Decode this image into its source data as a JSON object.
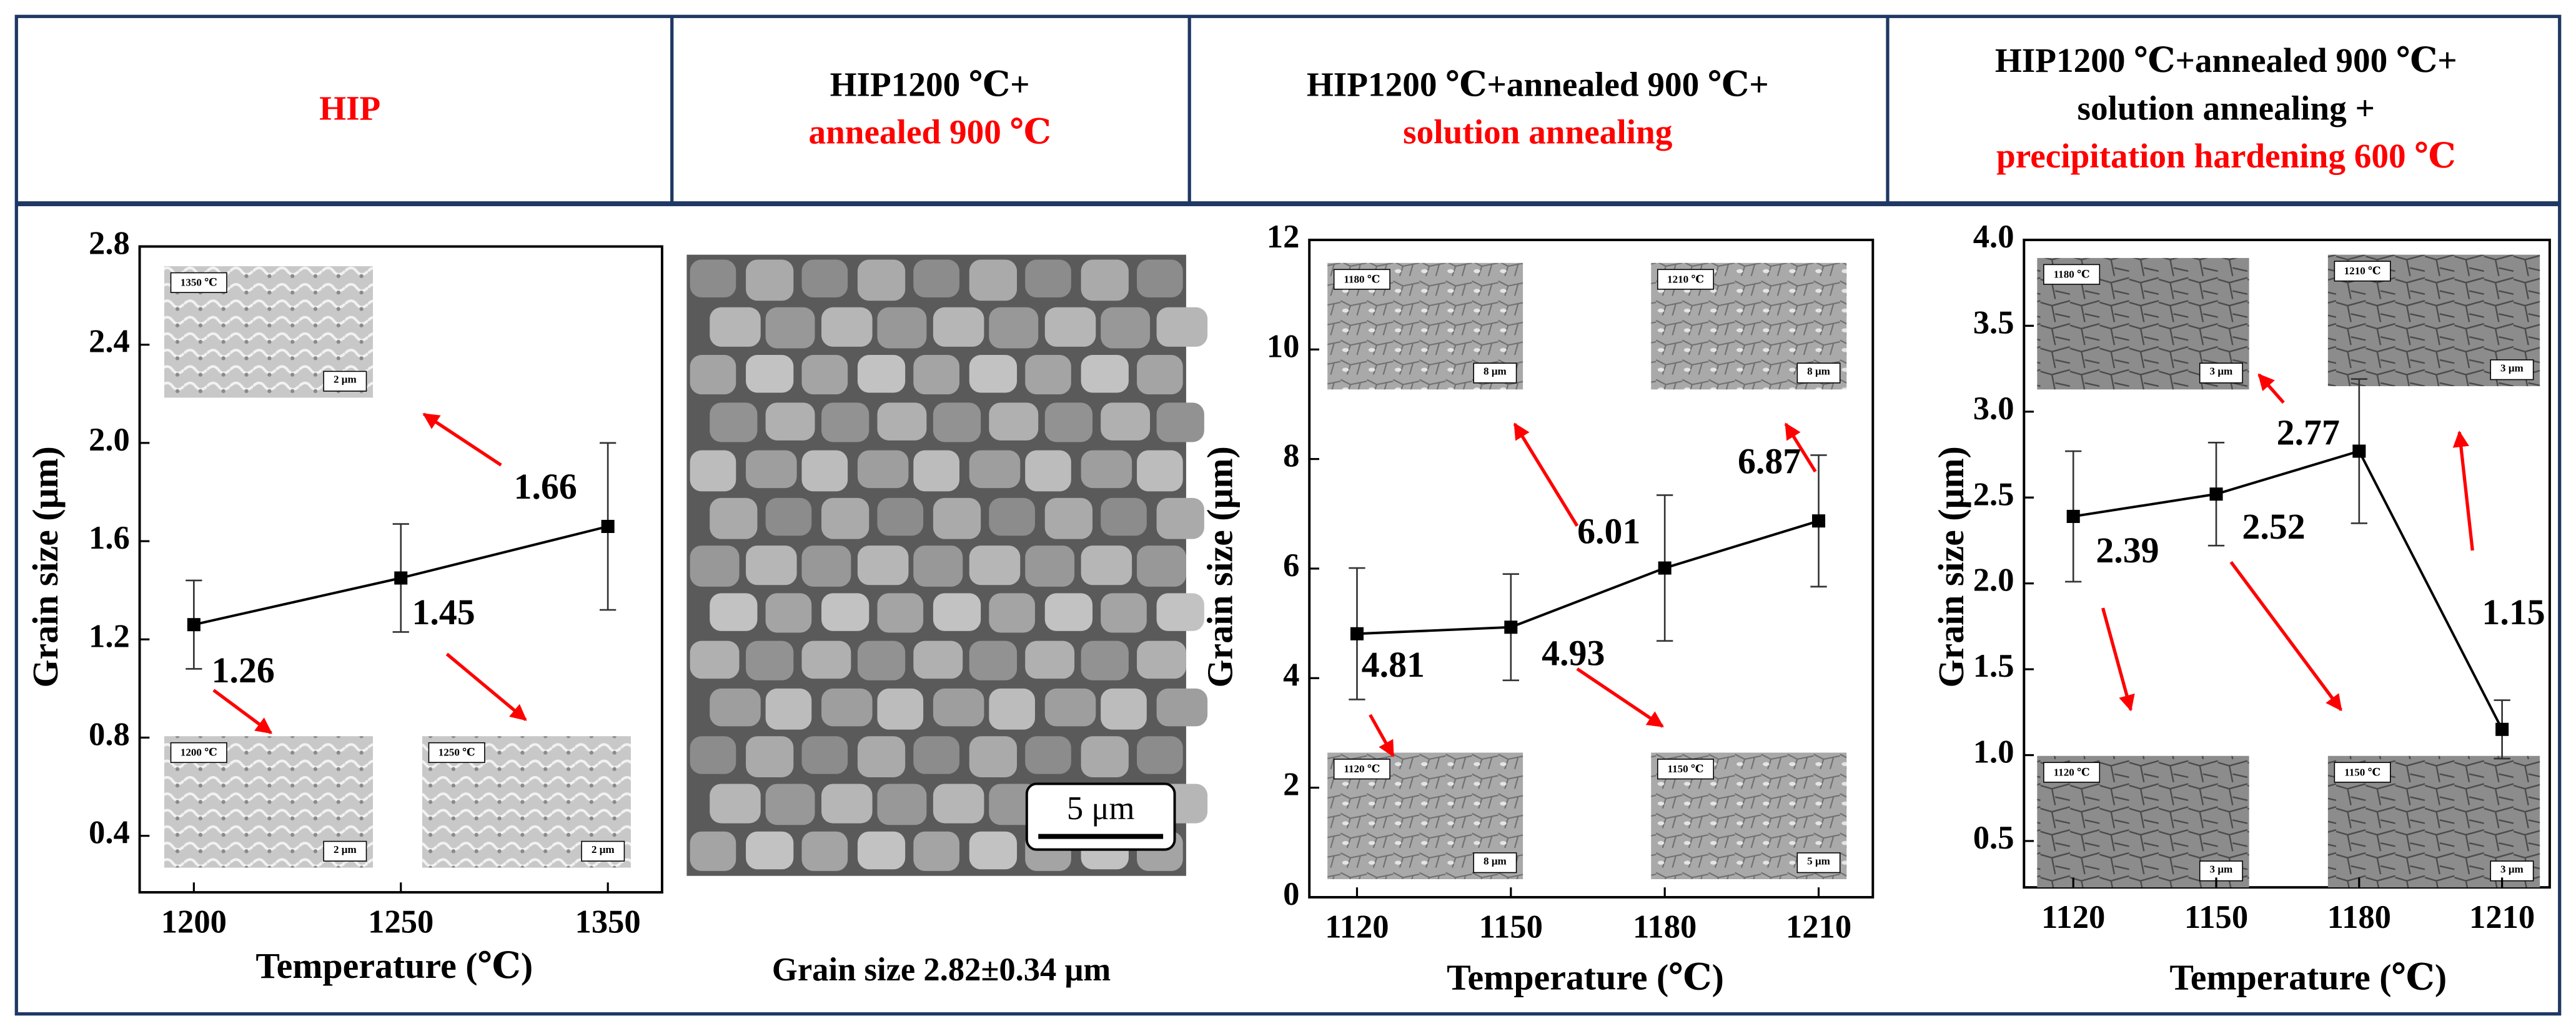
{
  "header": {
    "cells": [
      {
        "lines": [
          {
            "text": "HIP",
            "color": "#ff0000"
          }
        ]
      },
      {
        "lines": [
          {
            "text": "HIP1200 ℃+",
            "color": "#000000"
          },
          {
            "text": "annealed 900 ℃",
            "color": "#ff0000"
          }
        ]
      },
      {
        "lines": [
          {
            "text": "HIP1200 ℃+annealed 900 ℃+",
            "color": "#000000"
          },
          {
            "text": "solution annealing",
            "color": "#ff0000"
          }
        ]
      },
      {
        "lines": [
          {
            "text": "HIP1200 ℃+annealed 900 ℃+",
            "color": "#000000"
          },
          {
            "text": "solution annealing +",
            "color": "#000000"
          },
          {
            "text": "precipitation hardening 600 ℃",
            "color": "#ff0000"
          }
        ]
      }
    ]
  },
  "micrograph": {
    "scale_bar": "5 μm",
    "caption": "Grain size 2.82±0.34 μm"
  },
  "chart_data": [
    {
      "type": "line",
      "x_label": "Temperature (℃)",
      "y_label": "Grain size (μm)",
      "categories": [
        "1200",
        "1250",
        "1350"
      ],
      "series": [
        {
          "color": "#000000",
          "values": [
            1.26,
            1.45,
            1.66
          ],
          "errors": [
            0.18,
            0.22,
            0.34
          ]
        }
      ],
      "ylim": [
        0.17,
        2.8
      ],
      "yticks": [
        0.4,
        0.8,
        1.2,
        1.6,
        {
          "value": 2,
          "label": "2.0"
        },
        2.4,
        2.8
      ],
      "insets": [
        {
          "label": "1350 ℃",
          "scale": "2 μm"
        },
        {
          "label": "1200 ℃",
          "scale": "2 μm"
        },
        {
          "label": "1250 ℃",
          "scale": "2 μm"
        }
      ]
    },
    {
      "type": "line",
      "x_label": "Temperature (℃)",
      "y_label": "Grain size (μm)",
      "categories": [
        "1120",
        "1150",
        "1180",
        "1210"
      ],
      "series": [
        {
          "color": "#000000",
          "values": [
            4.81,
            4.93,
            6.01,
            6.87
          ],
          "errors": [
            1.2,
            0.97,
            1.33,
            1.2
          ]
        }
      ],
      "ylim": [
        0,
        12
      ],
      "yticks": [
        0,
        2,
        4,
        6,
        8,
        10,
        12
      ],
      "insets": [
        {
          "label": "1180 ℃",
          "scale": "8 μm"
        },
        {
          "label": "1210 ℃",
          "scale": "8 μm"
        },
        {
          "label": "1120 ℃",
          "scale": "8 μm"
        },
        {
          "label": "1150 ℃",
          "scale": "5 μm"
        }
      ]
    },
    {
      "type": "line",
      "x_label": "Temperature (℃)",
      "y_label": "Grain size (μm)",
      "categories": [
        "1120",
        "1150",
        "1180",
        "1210"
      ],
      "series": [
        {
          "color": "#000000",
          "values": [
            2.39,
            2.52,
            2.77,
            1.15
          ],
          "errors": [
            0.38,
            0.3,
            0.42,
            0.17
          ]
        }
      ],
      "ylim": [
        0.23,
        4
      ],
      "yticks": [
        0.5,
        {
          "value": 1,
          "label": "1.0"
        },
        1.5,
        {
          "value": 2,
          "label": "2.0"
        },
        2.5,
        {
          "value": 3,
          "label": "3.0"
        },
        3.5,
        {
          "value": 4,
          "label": "4.0"
        }
      ],
      "insets": [
        {
          "label": "1180 ℃",
          "scale": "3 μm"
        },
        {
          "label": "1210 ℃",
          "scale": "3 μm"
        },
        {
          "label": "1120 ℃",
          "scale": "3 μm"
        },
        {
          "label": "1150 ℃",
          "scale": "3 μm"
        }
      ]
    }
  ]
}
